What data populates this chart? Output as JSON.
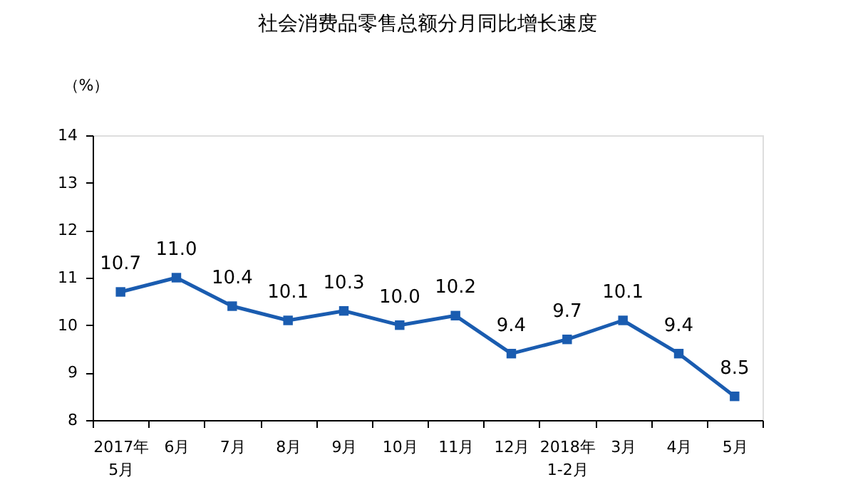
{
  "chart_data": {
    "type": "line",
    "title": "社会消费品零售总额分月同比增长速度",
    "ylabel": "（%）",
    "categories": [
      "2017年\n5月",
      "6月",
      "7月",
      "8月",
      "9月",
      "10月",
      "11月",
      "12月",
      "2018年\n1-2月",
      "3月",
      "4月",
      "5月"
    ],
    "series": [
      {
        "color": "#1a5cb0",
        "values": [
          10.7,
          11.0,
          10.4,
          10.1,
          10.3,
          10.0,
          10.2,
          9.4,
          9.7,
          10.1,
          9.4,
          8.5
        ],
        "value_labels": [
          "10.7",
          "11.0",
          "10.4",
          "10.1",
          "10.3",
          "10.0",
          "10.2",
          "9.4",
          "9.7",
          "10.1",
          "9.4",
          "8.5"
        ]
      }
    ],
    "ylim": [
      8,
      14
    ],
    "yticks": [
      8,
      9,
      10,
      11,
      12,
      13,
      14
    ],
    "grid": false,
    "legend": false,
    "marker": "square",
    "line_style": "solid"
  }
}
